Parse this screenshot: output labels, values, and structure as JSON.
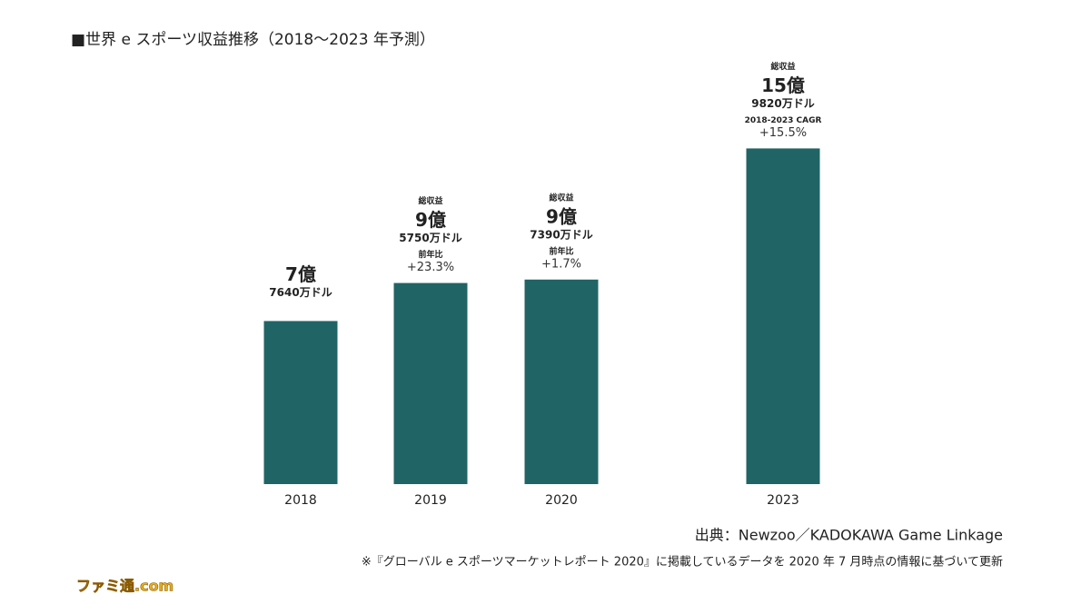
{
  "chart_data": {
    "type": "bar",
    "title": "■世界 e スポーツ収益推移（2018～2023 年予測）",
    "categories": [
      "2018",
      "2019",
      "2020",
      "2023"
    ],
    "values": [
      776400000,
      957500000,
      973900000,
      1598200000
    ],
    "value_labels": [
      [
        "7億",
        "7640万ドル"
      ],
      [
        "9億",
        "5750万ドル"
      ],
      [
        "9億",
        "7390万ドル"
      ],
      [
        "15億",
        "9820万ドル"
      ]
    ],
    "label_headers": [
      null,
      "総収益",
      "総収益",
      "総収益"
    ],
    "growth_labels": [
      null,
      "前年比",
      "前年比",
      "2018-2023 CAGR"
    ],
    "growth_values": [
      null,
      "+23.3%",
      "+1.7%",
      "+15.5%"
    ],
    "color": "#216465",
    "ylim": [
      0,
      1600000000
    ],
    "source": "出典：Newzoo／KADOKAWA Game Linkage",
    "note": "※『グローバル e スポーツマーケットレポート 2020』に掲載しているデータを 2020 年 7 月時点の情報に基づいて更新",
    "logo": "ファミ通.com"
  }
}
